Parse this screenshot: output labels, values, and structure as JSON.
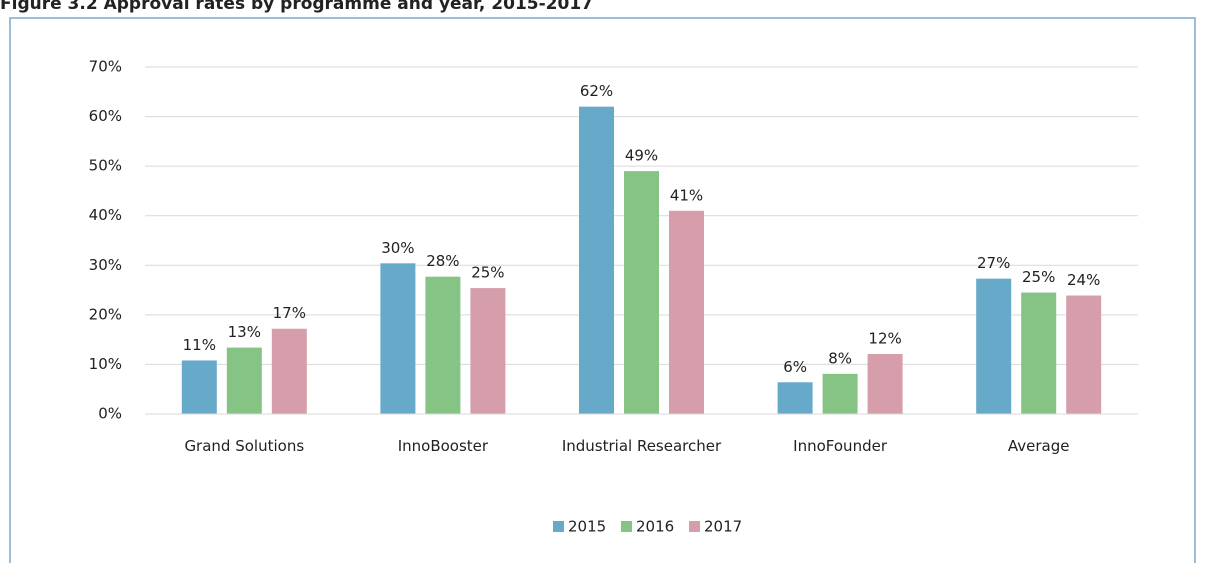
{
  "chart_data": {
    "type": "bar",
    "title": "Figure 3.2 Approval rates by programme and year, 2015-2017",
    "categories": [
      "Grand Solutions",
      "InnoBooster",
      "Industrial Researcher",
      "InnoFounder",
      "Average"
    ],
    "series": [
      {
        "name": "2015",
        "color": "#67a9c9",
        "values": [
          10.8,
          30.4,
          62,
          6.4,
          27.3
        ],
        "value_labels": [
          "11%",
          "30%",
          "62%",
          "6%",
          "27%"
        ]
      },
      {
        "name": "2016",
        "color": "#86c486",
        "values": [
          13.4,
          27.7,
          49,
          8.1,
          24.5
        ],
        "value_labels": [
          "13%",
          "28%",
          "49%",
          "8%",
          "25%"
        ]
      },
      {
        "name": "2017",
        "color": "#d69daa",
        "values": [
          17.2,
          25.4,
          41,
          12.1,
          23.9
        ],
        "value_labels": [
          "17%",
          "25%",
          "41%",
          "12%",
          "24%"
        ]
      }
    ],
    "ylim": [
      0,
      70
    ],
    "yticks": [
      {
        "value": 0,
        "label": "0%"
      },
      {
        "value": 10,
        "label": "10%"
      },
      {
        "value": 20,
        "label": "20%"
      },
      {
        "value": 30,
        "label": "30%"
      },
      {
        "value": 40,
        "label": "40%"
      },
      {
        "value": 50,
        "label": "50%"
      },
      {
        "value": 60,
        "label": "60%"
      },
      {
        "value": 70,
        "label": "70%"
      }
    ],
    "grid": true,
    "legend": "bottom"
  }
}
